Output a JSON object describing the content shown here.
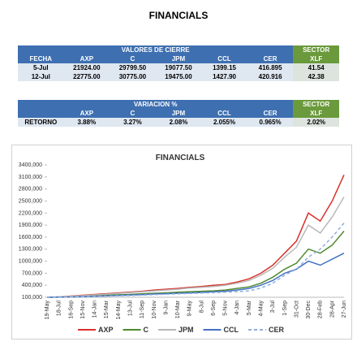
{
  "title": "FINANCIALS",
  "closing_table": {
    "group_header": "VALORES DE CIERRE",
    "sector_header": "SECTOR",
    "columns": [
      "FECHA",
      "AXP",
      "C",
      "JPM",
      "CCL",
      "CER",
      "XLF"
    ],
    "rows": [
      [
        "5-Jul",
        "21924.00",
        "29799.50",
        "19077.50",
        "1399.15",
        "416.895",
        "41.54"
      ],
      [
        "12-Jul",
        "22775.00",
        "30775.00",
        "19475.00",
        "1427.90",
        "420.916",
        "42.38"
      ]
    ]
  },
  "return_table": {
    "group_header": "VARIACION %",
    "sector_header": "SECTOR",
    "columns": [
      "AXP",
      "C",
      "JPM",
      "CCL",
      "CER",
      "XLF"
    ],
    "rows": [
      [
        "RETORNO",
        "3.88%",
        "3.27%",
        "2.08%",
        "2.055%",
        "0.965%",
        "2.02%"
      ]
    ]
  },
  "chart_data": {
    "type": "line",
    "title": "FINANCIALS",
    "categories": [
      "19-May",
      "18-Jul",
      "16-Sep",
      "15-Nov",
      "14-Jan",
      "15-Mar",
      "14-May",
      "13-Jul",
      "11-Sep",
      "10-Nov",
      "9-Jan",
      "10-Mar",
      "9-May",
      "8-Jul",
      "6-Sep",
      "5-Nov",
      "4-Jan",
      "5-Mar",
      "4-May",
      "3-Jul",
      "1-Sep",
      "31-Oct",
      "30-Dec",
      "28-Feb",
      "28-Apr",
      "27-Jun"
    ],
    "series": [
      {
        "name": "AXP",
        "color": "#d9312b",
        "values": [
          100000,
          110000,
          130000,
          150000,
          170000,
          190000,
          210000,
          230000,
          250000,
          280000,
          300000,
          320000,
          350000,
          370000,
          400000,
          420000,
          480000,
          560000,
          700000,
          900000,
          1200000,
          1500000,
          2200000,
          2000000,
          2500000,
          3150000
        ]
      },
      {
        "name": "C",
        "color": "#4f8a2e",
        "values": [
          100000,
          105000,
          115000,
          125000,
          135000,
          150000,
          160000,
          170000,
          185000,
          200000,
          210000,
          225000,
          240000,
          250000,
          260000,
          280000,
          320000,
          360000,
          450000,
          600000,
          800000,
          950000,
          1300000,
          1200000,
          1400000,
          1750000
        ]
      },
      {
        "name": "JPM",
        "color": "#b8b8b8",
        "values": [
          100000,
          110000,
          125000,
          140000,
          160000,
          175000,
          195000,
          215000,
          235000,
          260000,
          280000,
          300000,
          330000,
          350000,
          370000,
          400000,
          450000,
          520000,
          650000,
          820000,
          1100000,
          1350000,
          1900000,
          1700000,
          2100000,
          2600000
        ]
      },
      {
        "name": "CCL",
        "color": "#4472c4",
        "values": [
          100000,
          102000,
          108000,
          115000,
          125000,
          135000,
          145000,
          155000,
          165000,
          180000,
          190000,
          200000,
          210000,
          220000,
          235000,
          250000,
          280000,
          320000,
          400000,
          520000,
          700000,
          800000,
          1000000,
          900000,
          1050000,
          1200000
        ]
      },
      {
        "name": "CER",
        "color": "#8fb0dc",
        "dash": "dashed",
        "values": [
          100000,
          102000,
          106000,
          112000,
          120000,
          128000,
          136000,
          145000,
          155000,
          165000,
          175000,
          185000,
          195000,
          205000,
          215000,
          225000,
          240000,
          260000,
          330000,
          450000,
          650000,
          800000,
          1100000,
          1300000,
          1600000,
          1950000
        ]
      }
    ],
    "ylim": [
      100000,
      3400000
    ],
    "yticks": [
      {
        "value": 100000,
        "label": "100,000"
      },
      {
        "value": 400000,
        "label": "400,000"
      },
      {
        "value": 700000,
        "label": "700,000"
      },
      {
        "value": 1000000,
        "label": "1000,000"
      },
      {
        "value": 1300000,
        "label": "1300,000"
      },
      {
        "value": 1600000,
        "label": "1600,000"
      },
      {
        "value": 1900000,
        "label": "1900,000"
      },
      {
        "value": 2200000,
        "label": "2200,000"
      },
      {
        "value": 2500000,
        "label": "2500,000"
      },
      {
        "value": 2800000,
        "label": "2800,000"
      },
      {
        "value": 3100000,
        "label": "3100,000"
      },
      {
        "value": 3400000,
        "label": "3400,000"
      }
    ],
    "grid": false
  }
}
